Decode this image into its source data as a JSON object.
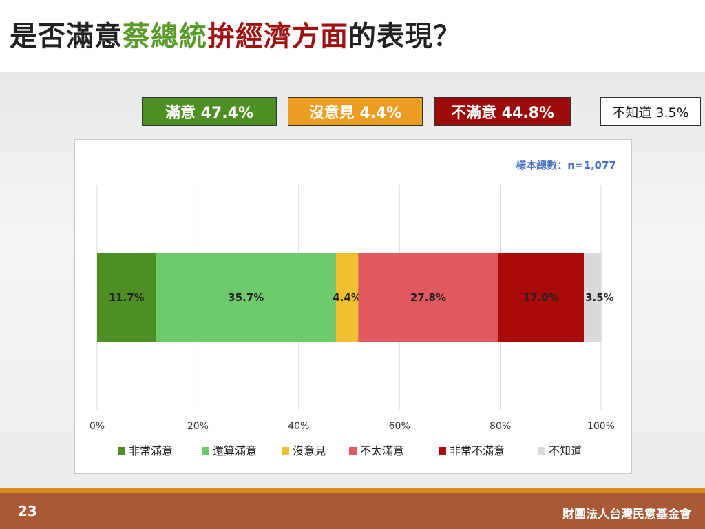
{
  "title": {
    "part1": "是否滿意",
    "part2": "蔡總統",
    "part3": "拚經濟方面",
    "part4": "的表現？"
  },
  "summary": {
    "satisfied": "滿意 47.4%",
    "no_opinion": "沒意見 4.4%",
    "dissatisfied": "不滿意 44.8%",
    "dont_know": "不知道 3.5%"
  },
  "sample_note": "樣本總數：n=1,077",
  "footer": {
    "page_number": "23",
    "organization": "財團法人台灣民意基金會"
  },
  "colors": {
    "very_satisfied": "#4d8f22",
    "somewhat_satisfied": "#6ecb6b",
    "no_opinion": "#f0c12e",
    "not_very_satisfied": "#e0595e",
    "very_dissatisfied": "#aa0a0a",
    "dont_know": "#d9d9d9"
  },
  "chart_data": {
    "type": "bar",
    "orientation": "horizontal",
    "stacked": true,
    "xlim": [
      0,
      100
    ],
    "xticks": [
      "0%",
      "20%",
      "40%",
      "60%",
      "80%",
      "100%"
    ],
    "grid": true,
    "legend_position": "bottom",
    "series": [
      {
        "name": "非常滿意",
        "value": 11.7,
        "label": "11.7%",
        "color": "#4d8f22"
      },
      {
        "name": "還算滿意",
        "value": 35.7,
        "label": "35.7%",
        "color": "#6ecb6b"
      },
      {
        "name": "沒意見",
        "value": 4.4,
        "label": "4.4%",
        "color": "#f0c12e"
      },
      {
        "name": "不太滿意",
        "value": 27.8,
        "label": "27.8%",
        "color": "#e0595e"
      },
      {
        "name": "非常不滿意",
        "value": 17.0,
        "label": "17.0%",
        "color": "#aa0a0a"
      },
      {
        "name": "不知道",
        "value": 3.5,
        "label": "3.5%",
        "color": "#d9d9d9"
      }
    ]
  }
}
